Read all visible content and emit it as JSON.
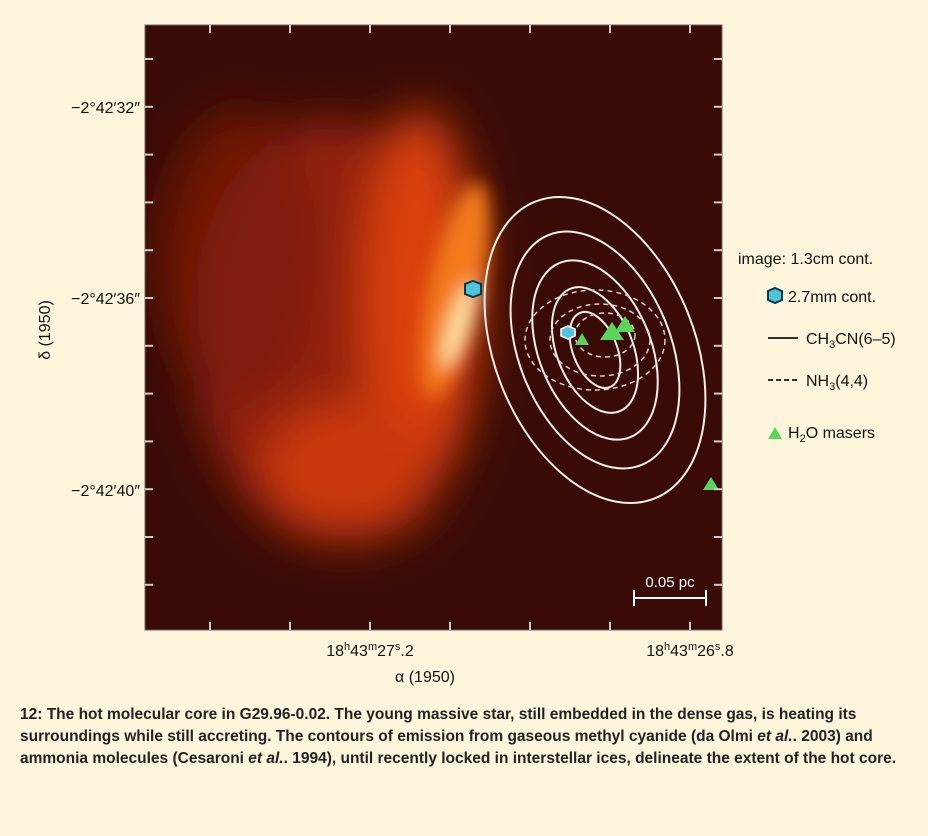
{
  "figure": {
    "y_ticks": [
      "−2°42′32″",
      "−2°42′36″",
      "−2°42′40″"
    ],
    "y_axis_title": "δ (1950)",
    "x_ticks": [
      [
        "18",
        "h",
        "43",
        "m",
        "27",
        "s",
        ".2"
      ],
      [
        "18",
        "h",
        "43",
        "m",
        "26",
        "s",
        ".8"
      ]
    ],
    "x_axis_title": "α (1950)",
    "scale_bar": "0.05 pc",
    "legend": {
      "image": "image: 1.3cm cont.",
      "items": [
        [
          "2.7mm cont."
        ],
        [
          "CH",
          "3",
          "CN(6–5)"
        ],
        [
          "NH",
          "3",
          "(4,4)"
        ],
        [
          "H",
          "2",
          "O masers"
        ]
      ]
    }
  },
  "caption": [
    "12: The hot molecular core in G29.96-0.02. The young massive star, still embedded in the dense gas, is heating its surroundings while still accreting. The contours of emission from gaseous methyl cyanide (da Olmi ",
    "et al.",
    ". 2003) and ammonia molecules (Cesaroni ",
    "et al.",
    ". 1994), until recently locked in interstellar ices, delineate the extent of the hot core."
  ]
}
